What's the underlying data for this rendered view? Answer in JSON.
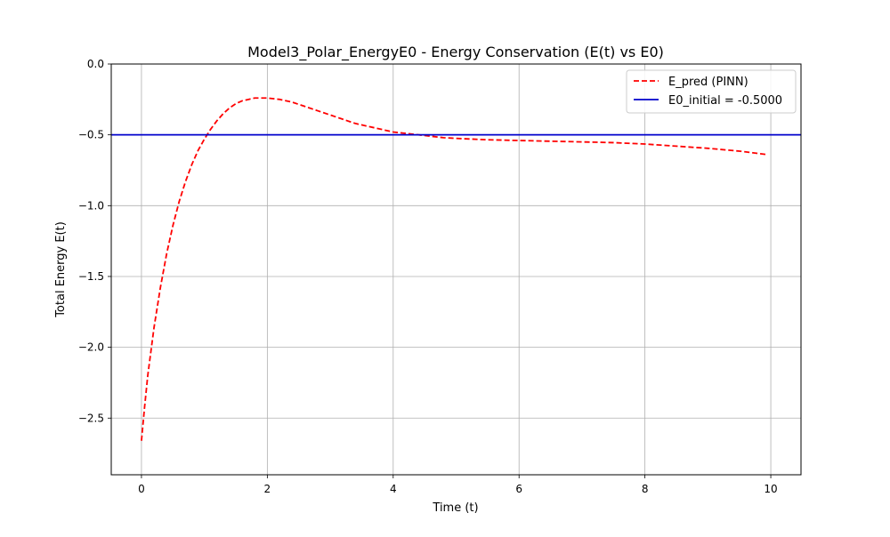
{
  "chart_data": {
    "type": "line",
    "title": "Model3_Polar_EnergyE0 - Energy Conservation (E(t) vs E0)",
    "xlabel": "Time (t)",
    "ylabel": "Total Energy E(t)",
    "xlim": [
      -0.48,
      10.48
    ],
    "ylim": [
      -2.9,
      0.0
    ],
    "xticks": [
      0,
      2,
      4,
      6,
      8,
      10
    ],
    "xtick_labels": [
      "0",
      "2",
      "4",
      "6",
      "8",
      "10"
    ],
    "yticks": [
      0.0,
      -0.5,
      -1.0,
      -1.5,
      -2.0,
      -2.5
    ],
    "ytick_labels": [
      "0.0",
      "−0.5",
      "−1.0",
      "−1.5",
      "−2.0",
      "−2.5"
    ],
    "grid": true,
    "legend_position": "top-right",
    "series": [
      {
        "name": "E_pred (PINN)",
        "color": "#ff0000",
        "style": "dashed",
        "x": [
          0,
          0.05,
          0.1,
          0.2,
          0.3,
          0.4,
          0.5,
          0.6,
          0.7,
          0.8,
          0.9,
          1.0,
          1.1,
          1.2,
          1.3,
          1.4,
          1.5,
          1.6,
          1.7,
          1.8,
          1.9,
          2.0,
          2.2,
          2.4,
          2.6,
          2.8,
          3.0,
          3.2,
          3.4,
          3.6,
          3.8,
          4.0,
          4.2,
          4.4,
          4.6,
          4.8,
          5.0,
          5.5,
          6.0,
          6.5,
          7.0,
          7.5,
          8.0,
          8.5,
          9.0,
          9.5,
          9.95
        ],
        "y": [
          -2.66,
          -2.42,
          -2.2,
          -1.86,
          -1.58,
          -1.34,
          -1.14,
          -0.97,
          -0.83,
          -0.71,
          -0.61,
          -0.53,
          -0.46,
          -0.4,
          -0.35,
          -0.31,
          -0.28,
          -0.26,
          -0.25,
          -0.24,
          -0.24,
          -0.24,
          -0.25,
          -0.27,
          -0.3,
          -0.33,
          -0.36,
          -0.39,
          -0.42,
          -0.44,
          -0.46,
          -0.48,
          -0.49,
          -0.5,
          -0.51,
          -0.52,
          -0.525,
          -0.535,
          -0.54,
          -0.545,
          -0.55,
          -0.555,
          -0.565,
          -0.58,
          -0.595,
          -0.615,
          -0.64
        ]
      },
      {
        "name": "E0_initial = -0.5000",
        "color": "#0000cc",
        "style": "solid",
        "hline": -0.5
      }
    ]
  }
}
